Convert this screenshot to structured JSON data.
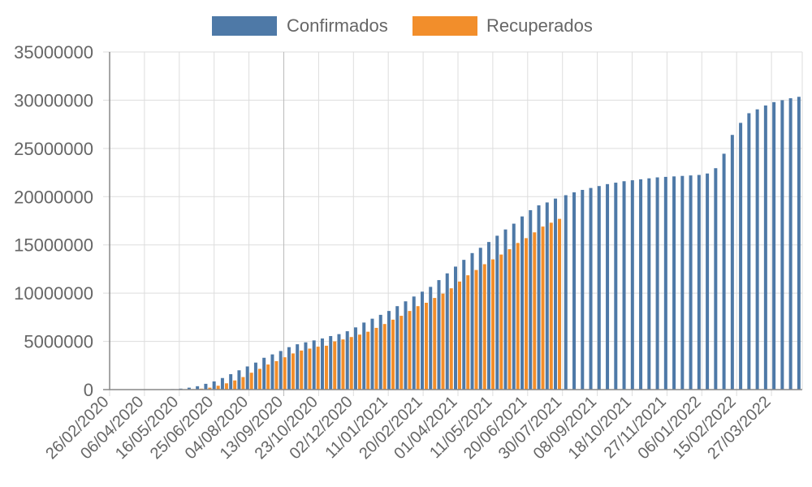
{
  "chart_data": {
    "type": "bar",
    "colors": {
      "confirmed": "#4e79a7",
      "recovered": "#f28e2b",
      "grid": "#dddddd",
      "axis": "#888888",
      "highlight_grid": "#bbbbbb"
    },
    "ylim": [
      0,
      35000000
    ],
    "yticks": [
      "0",
      "5000000",
      "10000000",
      "15000000",
      "20000000",
      "25000000",
      "30000000",
      "35000000"
    ],
    "legend_position": "top-center",
    "grid": true,
    "x_labels": [
      "26/02/2020",
      "06/04/2020",
      "16/05/2020",
      "25/06/2020",
      "04/08/2020",
      "13/09/2020",
      "23/10/2020",
      "02/12/2020",
      "11/01/2021",
      "20/02/2021",
      "01/04/2021",
      "11/05/2021",
      "20/06/2021",
      "30/07/2021",
      "08/09/2021",
      "18/10/2021",
      "27/11/2021",
      "06/01/2022",
      "15/02/2022",
      "27/03/2022"
    ],
    "series": [
      {
        "name": "Confirmados",
        "values": [
          0,
          0,
          0,
          0,
          0,
          0,
          0,
          50000,
          100000,
          200000,
          350000,
          600000,
          850000,
          1200000,
          1600000,
          2000000,
          2400000,
          2800000,
          3300000,
          3650000,
          4000000,
          4400000,
          4700000,
          4900000,
          5100000,
          5300000,
          5550000,
          5750000,
          6050000,
          6450000,
          6950000,
          7350000,
          7750000,
          8150000,
          8650000,
          9150000,
          9650000,
          10150000,
          10650000,
          11350000,
          12050000,
          12750000,
          13450000,
          14150000,
          14700000,
          15300000,
          15950000,
          16600000,
          17200000,
          17950000,
          18600000,
          19100000,
          19400000,
          19800000,
          20150000,
          20450000,
          20700000,
          20900000,
          21100000,
          21300000,
          21450000,
          21600000,
          21700000,
          21800000,
          21900000,
          22000000,
          22050000,
          22100000,
          22150000,
          22200000,
          22250000,
          22400000,
          22950000,
          24450000,
          26400000,
          27650000,
          28650000,
          29050000,
          29450000,
          29800000,
          30000000,
          30200000,
          30350000
        ],
        "color": "#4e79a7"
      },
      {
        "name": "Recuperados",
        "values": [
          0,
          0,
          0,
          0,
          0,
          0,
          0,
          0,
          0,
          50000,
          100000,
          200000,
          400000,
          650000,
          950000,
          1300000,
          1750000,
          2150000,
          2600000,
          2950000,
          3350000,
          3750000,
          4050000,
          4250000,
          4450000,
          4550000,
          5000000,
          5200000,
          5450000,
          5700000,
          6000000,
          6400000,
          6800000,
          7250000,
          7650000,
          8150000,
          8650000,
          9000000,
          9500000,
          9950000,
          10500000,
          11200000,
          11850000,
          12400000,
          13000000,
          13500000,
          14000000,
          14550000,
          15200000,
          15700000,
          16300000,
          16900000,
          17300000,
          17700000
        ],
        "color": "#f28e2b"
      }
    ]
  }
}
